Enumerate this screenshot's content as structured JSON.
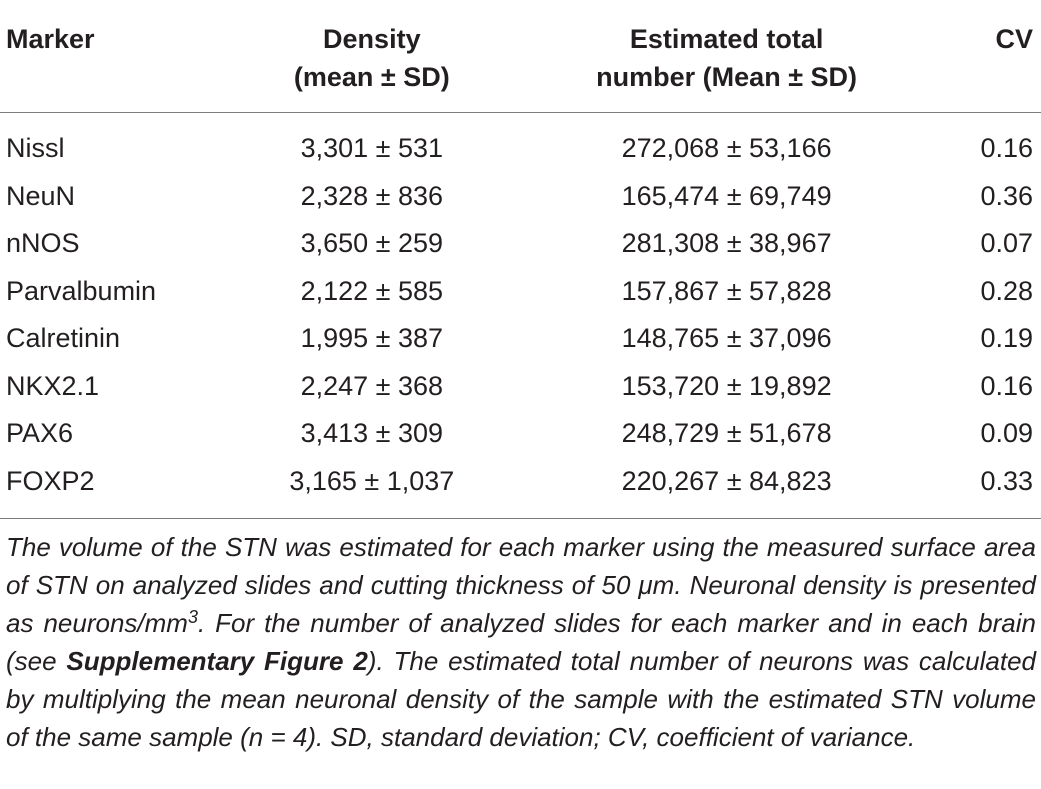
{
  "table": {
    "headers": {
      "marker": "Marker",
      "density_line1": "Density",
      "density_line2": "(mean ± SD)",
      "total_line1": "Estimated total",
      "total_line2": "number (Mean ± SD)",
      "cv": "CV"
    },
    "rows": [
      {
        "marker": "Nissl",
        "density": "3,301 ± 531",
        "total": "272,068 ± 53,166",
        "cv": "0.16"
      },
      {
        "marker": "NeuN",
        "density": "2,328 ± 836",
        "total": "165,474 ± 69,749",
        "cv": "0.36"
      },
      {
        "marker": "nNOS",
        "density": "3,650 ± 259",
        "total": "281,308 ± 38,967",
        "cv": "0.07"
      },
      {
        "marker": "Parvalbumin",
        "density": "2,122 ± 585",
        "total": "157,867 ± 57,828",
        "cv": "0.28"
      },
      {
        "marker": "Calretinin",
        "density": "1,995 ± 387",
        "total": "148,765 ± 37,096",
        "cv": "0.19"
      },
      {
        "marker": "NKX2.1",
        "density": "2,247 ± 368",
        "total": "153,720 ± 19,892",
        "cv": "0.16"
      },
      {
        "marker": "PAX6",
        "density": "3,413 ± 309",
        "total": "248,729 ± 51,678",
        "cv": "0.09"
      },
      {
        "marker": "FOXP2",
        "density": "3,165 ± 1,037",
        "total": "220,267 ± 84,823",
        "cv": "0.33"
      }
    ]
  },
  "footnote": {
    "part1": "The volume of the STN was estimated for each marker using the measured surface area of STN on analyzed slides and cutting thickness of 50 μm. Neuronal density is presented as neurons/mm",
    "sup": "3",
    "part2": ". For the number of analyzed slides for each marker and in each brain (see ",
    "link": "Supplementary Figure 2",
    "part3": "). The estimated total number of neurons was calculated by multiplying the mean neuronal density of the sample with the estimated STN volume of the same sample (n = 4). SD, standard deviation; CV, coefficient of variance."
  }
}
